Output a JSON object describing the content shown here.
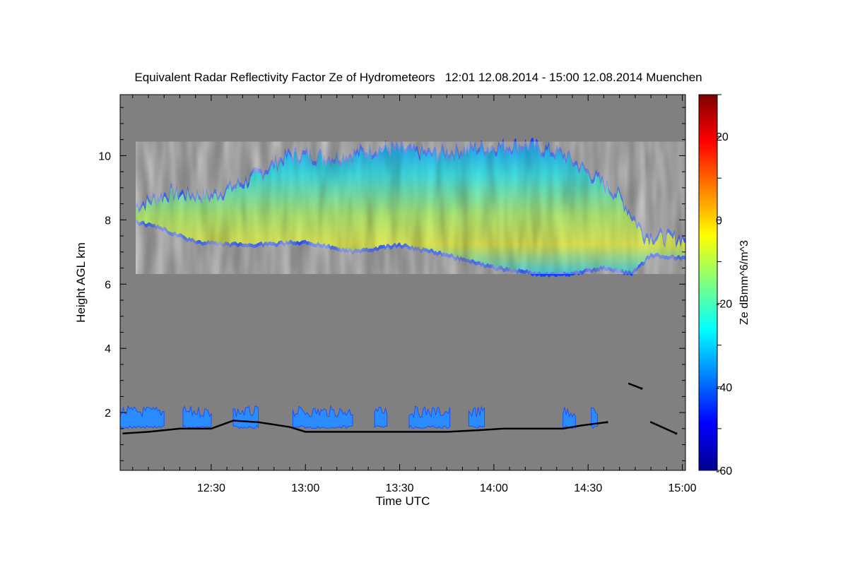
{
  "chart_data": {
    "type": "heatmap",
    "title": "Equivalent Radar Reflectivity Factor Ze of Hydrometeors   12:01 12.08.2014 - 15:00 12.08.2014 Muenchen",
    "xlabel": "Time UTC",
    "ylabel": "Height AGL km",
    "colorbar_label": "Ze dBmm^6/m^3",
    "x_range_minutes_utc": [
      721,
      901
    ],
    "x_ticks": [
      {
        "label": "12:30",
        "minutes": 750
      },
      {
        "label": "13:00",
        "minutes": 780
      },
      {
        "label": "13:30",
        "minutes": 810
      },
      {
        "label": "14:00",
        "minutes": 840
      },
      {
        "label": "14:30",
        "minutes": 870
      },
      {
        "label": "15:00",
        "minutes": 900
      }
    ],
    "y_range_km": [
      0.2,
      11.9
    ],
    "y_ticks": [
      {
        "label": "2",
        "value": 2
      },
      {
        "label": "4",
        "value": 4
      },
      {
        "label": "6",
        "value": 6
      },
      {
        "label": "8",
        "value": 8
      },
      {
        "label": "10",
        "value": 10
      }
    ],
    "colorbar_range_dbz": [
      -60,
      30
    ],
    "colorbar_ticks": [
      {
        "label": "20",
        "value": 20
      },
      {
        "label": "0",
        "value": 0
      },
      {
        "label": "-20",
        "value": -20
      },
      {
        "label": "-40",
        "value": -40
      },
      {
        "label": "-60",
        "value": -60
      }
    ],
    "background_color": "#808080",
    "upper_cloud_layer": {
      "description_km": "ice cloud layer; base sinks from ~7.4 km at 12:30 to ~6.3 km near 14:20; tops ~9.5-10.4 km; peak Ze near 0 dBZ",
      "base_km": [
        {
          "minutes": 726,
          "km": 7.9
        },
        {
          "minutes": 732,
          "km": 7.8
        },
        {
          "minutes": 745,
          "km": 7.3
        },
        {
          "minutes": 760,
          "km": 7.2
        },
        {
          "minutes": 780,
          "km": 7.3
        },
        {
          "minutes": 795,
          "km": 7.0
        },
        {
          "minutes": 810,
          "km": 7.2
        },
        {
          "minutes": 825,
          "km": 6.9
        },
        {
          "minutes": 840,
          "km": 6.5
        },
        {
          "minutes": 855,
          "km": 6.3
        },
        {
          "minutes": 865,
          "km": 6.3
        },
        {
          "minutes": 875,
          "km": 6.5
        },
        {
          "minutes": 884,
          "km": 6.3
        },
        {
          "minutes": 890,
          "km": 6.9
        },
        {
          "minutes": 901,
          "km": 6.8
        }
      ],
      "top_km": [
        {
          "minutes": 726,
          "km": 8.5
        },
        {
          "minutes": 737,
          "km": 8.9
        },
        {
          "minutes": 750,
          "km": 8.8
        },
        {
          "minutes": 762,
          "km": 9.3
        },
        {
          "minutes": 775,
          "km": 10.1
        },
        {
          "minutes": 790,
          "km": 10.0
        },
        {
          "minutes": 805,
          "km": 10.3
        },
        {
          "minutes": 820,
          "km": 10.1
        },
        {
          "minutes": 835,
          "km": 10.3
        },
        {
          "minutes": 850,
          "km": 10.4
        },
        {
          "minutes": 862,
          "km": 10.1
        },
        {
          "minutes": 872,
          "km": 9.4
        },
        {
          "minutes": 880,
          "km": 8.8
        },
        {
          "minutes": 888,
          "km": 7.6
        },
        {
          "minutes": 895,
          "km": 7.5
        },
        {
          "minutes": 901,
          "km": 7.5
        }
      ],
      "peak_dbz": 0
    },
    "low_cloud_layer": {
      "description_km": "broken low clouds between ~1.4 and ~2.3 km, Ze around -40 to -30 dBZ",
      "segments_minutes": [
        [
          721,
          735
        ],
        [
          741,
          750
        ],
        [
          757,
          765
        ],
        [
          776,
          795
        ],
        [
          802,
          806
        ],
        [
          813,
          826
        ],
        [
          832,
          837
        ],
        [
          862,
          866
        ],
        [
          871,
          873
        ]
      ],
      "base_km": 1.5,
      "top_km": 2.2,
      "typical_dbz": -35
    },
    "cloud_base_detections": {
      "description": "black dots marking ceilometer cloud base",
      "points": [
        {
          "minutes": 722,
          "km": 1.35
        },
        {
          "minutes": 730,
          "km": 1.4
        },
        {
          "minutes": 740,
          "km": 1.5
        },
        {
          "minutes": 750,
          "km": 1.5
        },
        {
          "minutes": 757,
          "km": 1.75
        },
        {
          "minutes": 765,
          "km": 1.7
        },
        {
          "minutes": 775,
          "km": 1.55
        },
        {
          "minutes": 780,
          "km": 1.4
        },
        {
          "minutes": 795,
          "km": 1.4
        },
        {
          "minutes": 810,
          "km": 1.4
        },
        {
          "minutes": 825,
          "km": 1.4
        },
        {
          "minutes": 835,
          "km": 1.45
        },
        {
          "minutes": 843,
          "km": 1.5
        },
        {
          "minutes": 852,
          "km": 1.5
        },
        {
          "minutes": 862,
          "km": 1.5
        },
        {
          "minutes": 868,
          "km": 1.6
        },
        {
          "minutes": 876,
          "km": 1.7
        },
        {
          "minutes": 883,
          "km": 2.9
        },
        {
          "minutes": 887,
          "km": 2.75
        },
        {
          "minutes": 890,
          "km": 1.7
        },
        {
          "minutes": 898,
          "km": 1.35
        }
      ]
    }
  }
}
